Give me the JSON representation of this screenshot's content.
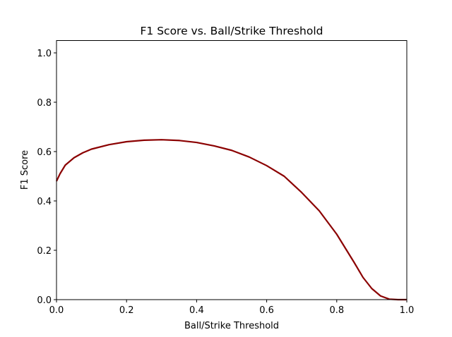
{
  "chart_data": {
    "type": "line",
    "title": "F1 Score vs. Ball/Strike Threshold",
    "x_label": "Ball/Strike Threshold",
    "y_label": "F1 Score",
    "x": [
      0,
      0.01,
      0.025,
      0.05,
      0.075,
      0.1,
      0.15,
      0.2,
      0.25,
      0.3,
      0.35,
      0.4,
      0.45,
      0.5,
      0.55,
      0.6,
      0.65,
      0.7,
      0.75,
      0.8,
      0.85,
      0.875,
      0.9,
      0.925,
      0.95,
      0.975,
      1.0
    ],
    "series": [
      {
        "color": "#8b0000",
        "values": [
          0.48,
          0.51,
          0.545,
          0.575,
          0.595,
          0.61,
          0.628,
          0.64,
          0.646,
          0.648,
          0.645,
          0.637,
          0.623,
          0.605,
          0.578,
          0.543,
          0.5,
          0.434,
          0.36,
          0.265,
          0.15,
          0.09,
          0.045,
          0.015,
          0.002,
          0,
          0
        ]
      }
    ],
    "xlim": [
      0,
      1
    ],
    "ylim": [
      0,
      1.05
    ],
    "xticks": [
      {
        "value": 0,
        "label": "0.0"
      },
      0.2,
      0.4,
      0.6,
      0.8,
      {
        "value": 1,
        "label": "1.0"
      }
    ],
    "yticks": [
      {
        "value": 0,
        "label": "0.0"
      },
      0.2,
      0.4,
      0.6,
      0.8,
      {
        "value": 1,
        "label": "1.0"
      }
    ]
  }
}
